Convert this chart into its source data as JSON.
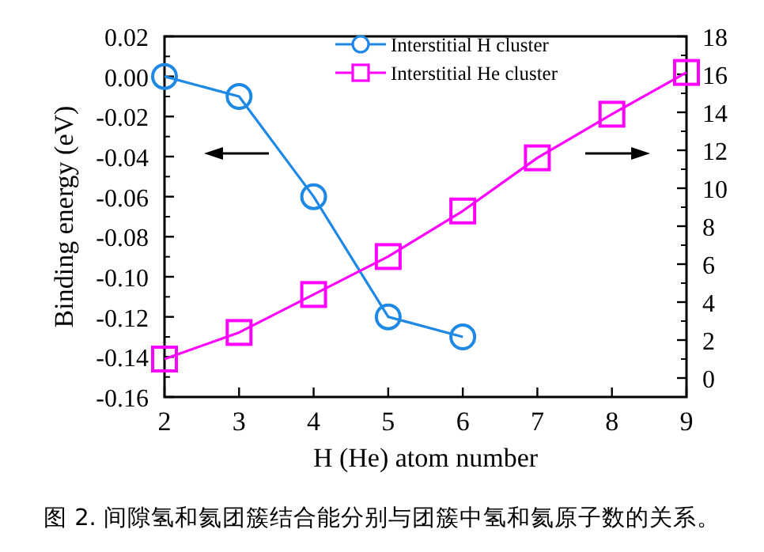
{
  "chart_data": {
    "type": "line",
    "xlabel": "H (He) atom number",
    "ylabel": "Binding energy (eV)",
    "x": [
      2,
      3,
      4,
      5,
      6,
      7,
      8,
      9
    ],
    "xlim": [
      2,
      9
    ],
    "xticks": [
      2,
      3,
      4,
      5,
      6,
      7,
      8,
      9
    ],
    "ylim": [
      -0.16,
      0.02
    ],
    "yticks": [
      {
        "value": 0.02,
        "label": "0.02"
      },
      {
        "value": 0,
        "label": "0.00"
      },
      {
        "value": -0.02,
        "label": "-0.02"
      },
      {
        "value": -0.04,
        "label": "-0.04"
      },
      {
        "value": -0.06,
        "label": "-0.06"
      },
      {
        "value": -0.08,
        "label": "-0.08"
      },
      {
        "value": -0.1,
        "label": "-0.10"
      },
      {
        "value": -0.12,
        "label": "-0.12"
      },
      {
        "value": -0.14,
        "label": "-0.14"
      },
      {
        "value": -0.16,
        "label": "-0.16"
      }
    ],
    "y2lim": [
      -1,
      18
    ],
    "y2ticks": [
      0,
      2,
      4,
      6,
      8,
      10,
      12,
      14,
      16,
      18
    ],
    "legend": "top",
    "grid": false,
    "line_style": "solid",
    "series": [
      {
        "name": "Interstitial H cluster",
        "color": "#1e88e5",
        "marker": "circle",
        "x": [
          2,
          3,
          4,
          5,
          6
        ],
        "values": [
          0,
          -0.01,
          -0.06,
          -0.12,
          -0.13
        ]
      },
      {
        "name": "Interstitial He cluster",
        "color": "#ff00ff",
        "marker": "square",
        "axis": "y2",
        "values": [
          1.0,
          2.4,
          4.4,
          6.4,
          8.8,
          11.6,
          13.9,
          16.1
        ]
      }
    ],
    "annotations": [
      "图 2. 间隙氢和氦团簇结合能分别与团簇中氢和氦原子数的关系。"
    ]
  }
}
